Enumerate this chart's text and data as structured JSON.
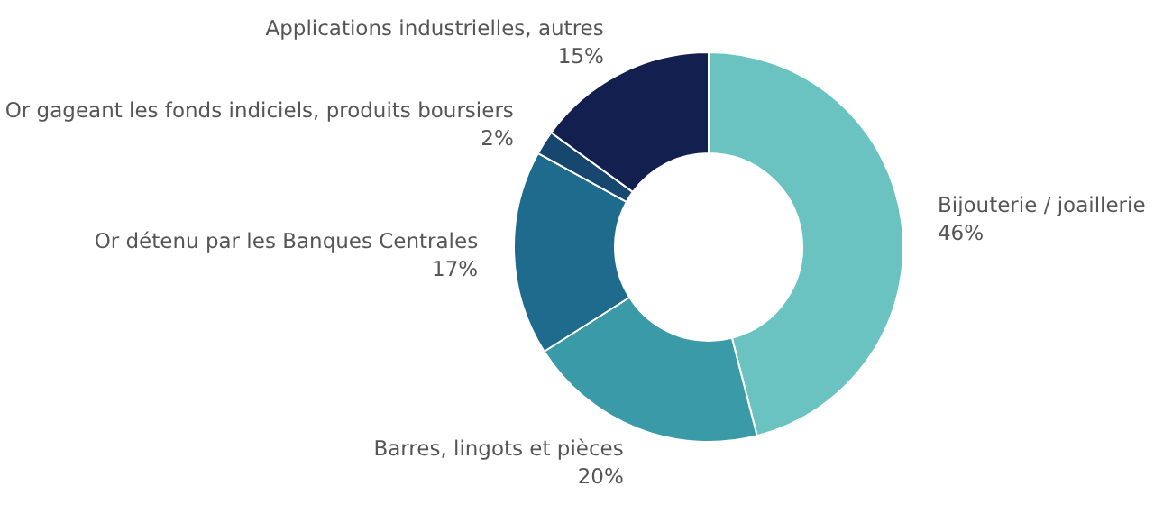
{
  "chart_data": {
    "type": "donut",
    "categories": [
      "Bijouterie / joaillerie",
      "Barres, lingots et pièces",
      "Or détenu par les Banques Centrales",
      "Or gageant les fonds indiciels, produits boursiers",
      "Applications industrielles, autres"
    ],
    "values": [
      46,
      20,
      17,
      2,
      15
    ],
    "value_labels": [
      "46%",
      "20%",
      "17%",
      "2%",
      "15%"
    ],
    "colors": [
      "#6ac3c1",
      "#3a9aa8",
      "#1e6b8e",
      "#17476e",
      "#131f4e"
    ]
  }
}
